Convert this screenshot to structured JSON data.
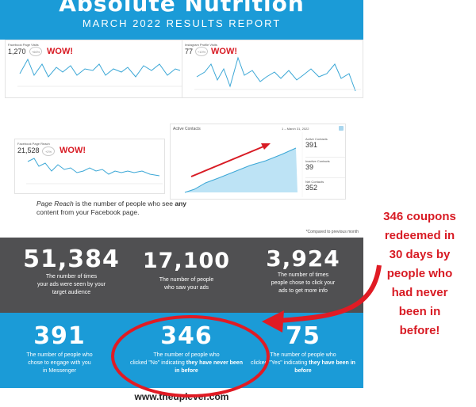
{
  "header": {
    "title": "Absolute Nutrition",
    "subtitle": "MARCH 2022 RESULTS REPORT"
  },
  "charts": {
    "facebook_page_visits": {
      "label": "Facebook Page Visits",
      "value": "1,270",
      "badge": "+66%",
      "wow": "WOW!"
    },
    "instagram_profile_visits": {
      "label": "Instagram Profile Visits",
      "value": "77",
      "badge": "+10%",
      "wow": "WOW!"
    },
    "facebook_page_reach": {
      "label": "Facebook Page Reach",
      "value": "21,528",
      "badge": "+2%",
      "wow": "WOW!"
    },
    "active_contacts": {
      "title": "Active Contacts",
      "date_range": "1 – March 31, 2022",
      "metrics": [
        {
          "label": "Active Contacts",
          "value": "391"
        },
        {
          "label": "Inactive Contacts",
          "value": "39"
        },
        {
          "label": "Net Contacts",
          "value": "352"
        }
      ]
    }
  },
  "reach_note": {
    "term": "Page Reach",
    "pre": " is the number of people who see ",
    "bold": "any",
    "post": " content from your Facebook page."
  },
  "compare_note": "*Compared to previous month",
  "stats_dark": [
    {
      "number": "51,384",
      "line1": "The number of times",
      "line2": "your ads were seen by your",
      "line3": "target audience"
    },
    {
      "number": "17,100",
      "line1": "The number of people",
      "line2": "who saw your ads",
      "line3": ""
    },
    {
      "number": "3,924",
      "line1": "The number of times",
      "line2": "people chose to click your",
      "line3": "ads to get more info"
    }
  ],
  "stats_blue": [
    {
      "number": "391",
      "line1": "The number of people who",
      "line2": "chose to engage with you",
      "line3": "in Messenger",
      "bold": ""
    },
    {
      "number": "346",
      "line1": "The number of people who",
      "line2": "clicked \"No\" indicating ",
      "bold": "they have never been in before"
    },
    {
      "number": "75",
      "line1": "The number of people who",
      "line2": "clicked \"Yes\" indicating ",
      "bold": "they have been in before"
    }
  ],
  "website": "www.theuplever.com",
  "callout": {
    "lines": [
      "346 coupons",
      "redeemed in",
      "30 days by",
      "people who",
      "had never",
      "been in",
      "before!"
    ]
  },
  "colors": {
    "accent_red": "#d81b24",
    "brand_blue": "#1b9bd7",
    "dark_gray": "#505052",
    "line_blue": "#3ba7d6"
  }
}
